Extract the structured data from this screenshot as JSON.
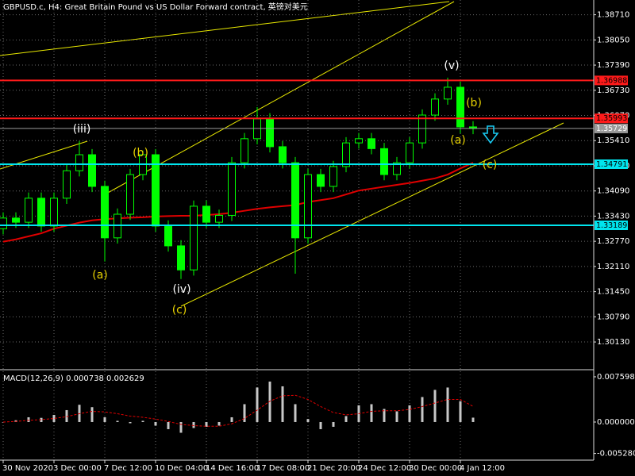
{
  "chart_data": [
    {
      "type": "candlestick",
      "title": "GBPUSD.c, H4:  Great Britain Pound vs US Dollar Forward contract, 英镑对美元",
      "categories": [
        "30 Nov 2020",
        null,
        null,
        null,
        "3 Dec 00:00",
        null,
        null,
        null,
        "7 Dec 12:00",
        null,
        null,
        null,
        "10 Dec 04:00",
        null,
        null,
        null,
        "14 Dec 16:00",
        null,
        null,
        null,
        "17 Dec 08:00",
        null,
        null,
        null,
        "21 Dec 20:00",
        null,
        null,
        null,
        "24 Dec 12:00",
        null,
        null,
        null,
        "30 Dec 00:00",
        null,
        null,
        null,
        "4 Jan 12:00",
        null
      ],
      "open": [
        1.331,
        1.3338,
        1.3327,
        1.339,
        1.3317,
        1.339,
        1.3462,
        1.3504,
        1.3421,
        1.3286,
        1.3348,
        1.3452,
        1.3504,
        1.3317,
        1.3265,
        1.3202,
        1.3369,
        1.3327,
        1.3345,
        1.3483,
        1.3546,
        1.3598,
        1.3525,
        1.3483,
        1.3286,
        1.3452,
        1.3421,
        1.3473,
        1.3535,
        1.3546,
        1.352,
        1.3452,
        1.3483,
        1.3535,
        1.3608,
        1.365,
        1.3681,
        1.3577
      ],
      "high": [
        1.3353,
        1.3353,
        1.3405,
        1.3405,
        1.3405,
        1.3477,
        1.354,
        1.3519,
        1.3436,
        1.3363,
        1.3467,
        1.3515,
        1.3519,
        1.3332,
        1.328,
        1.3384,
        1.3384,
        1.336,
        1.3498,
        1.3561,
        1.3629,
        1.3613,
        1.354,
        1.3498,
        1.3467,
        1.3467,
        1.3488,
        1.355,
        1.3561,
        1.3561,
        1.3535,
        1.3498,
        1.355,
        1.3623,
        1.3665,
        1.3706,
        1.3696,
        1.3592
      ],
      "low": [
        1.3295,
        1.3312,
        1.3312,
        1.3302,
        1.3302,
        1.3375,
        1.3447,
        1.3406,
        1.3224,
        1.3271,
        1.3333,
        1.3437,
        1.3302,
        1.325,
        1.3178,
        1.3187,
        1.3312,
        1.3312,
        1.333,
        1.3468,
        1.3531,
        1.351,
        1.3468,
        1.3192,
        1.3271,
        1.3406,
        1.3406,
        1.3458,
        1.352,
        1.3505,
        1.3437,
        1.3437,
        1.3468,
        1.352,
        1.3593,
        1.3635,
        1.356,
        1.3558
      ],
      "close": [
        1.3338,
        1.3327,
        1.339,
        1.3317,
        1.339,
        1.3462,
        1.3504,
        1.3421,
        1.3286,
        1.3348,
        1.3452,
        1.3504,
        1.3317,
        1.3265,
        1.3202,
        1.3369,
        1.3327,
        1.3345,
        1.3483,
        1.3546,
        1.3598,
        1.3525,
        1.3483,
        1.3286,
        1.3452,
        1.3421,
        1.3473,
        1.3535,
        1.3546,
        1.352,
        1.3452,
        1.3483,
        1.3535,
        1.3608,
        1.365,
        1.3681,
        1.3577,
        1.3573
      ],
      "up_color": "#00ff00",
      "down_color": "#00ff00",
      "overlay": {
        "color": "#e00000",
        "values": [
          1.3276,
          1.3282,
          1.329,
          1.3298,
          1.331,
          1.3318,
          1.3326,
          1.3332,
          1.3335,
          1.3337,
          1.3339,
          1.334,
          1.3342,
          1.3343,
          1.3344,
          1.3344,
          1.3346,
          1.3348,
          1.3352,
          1.3357,
          1.3362,
          1.3366,
          1.3369,
          1.3372,
          1.338,
          1.3385,
          1.339,
          1.34,
          1.341,
          1.3415,
          1.342,
          1.3425,
          1.343,
          1.3436,
          1.3442,
          1.3452,
          1.3468,
          1.3483
        ]
      },
      "levels": [
        {
          "value": 1.36988,
          "color": "#ff1a1a"
        },
        {
          "value": 1.35993,
          "color": "#ff1a1a"
        },
        {
          "value": 1.35729,
          "color": "#9a9a9a"
        },
        {
          "value": 1.34791,
          "color": "#00e5ee"
        },
        {
          "value": 1.33189,
          "color": "#00e5ee"
        }
      ],
      "ylim": [
        1.29424,
        1.39097
      ],
      "yticks": [
        {
          "value": 1.3871,
          "label": "1.38710"
        },
        {
          "value": 1.3805,
          "label": "1.38050"
        },
        {
          "value": 1.3739,
          "label": "1.37390"
        },
        {
          "value": 1.3673,
          "label": "1.36730"
        },
        {
          "value": 1.3607,
          "label": "1.36070"
        },
        {
          "value": 1.3541,
          "label": "1.35410"
        },
        {
          "value": 1.3475,
          "label": "1.34750"
        },
        {
          "value": 1.3409,
          "label": "1.34090"
        },
        {
          "value": 1.3343,
          "label": "1.33430"
        },
        {
          "value": 1.3277,
          "label": "1.32770"
        },
        {
          "value": 1.3211,
          "label": "1.32110"
        },
        {
          "value": 1.3145,
          "label": "1.31450"
        },
        {
          "value": 1.3079,
          "label": "1.30790"
        },
        {
          "value": 1.3013,
          "label": "1.30130"
        }
      ],
      "grid": true,
      "annotations": [
        {
          "text": "(iii)",
          "color": "#ffffff"
        },
        {
          "text": "(b)",
          "color": "#e8d200"
        },
        {
          "text": "(a)",
          "color": "#e8d200"
        },
        {
          "text": "(iv)",
          "color": "#ffffff"
        },
        {
          "text": "(c)",
          "color": "#e8d200"
        },
        {
          "text": "(v)",
          "color": "#ffffff"
        },
        {
          "text": "(b)",
          "color": "#e8d200"
        },
        {
          "text": "(a)",
          "color": "#e8d200"
        },
        {
          "text": "(c)",
          "color": "#e8d200"
        }
      ]
    },
    {
      "type": "macd",
      "title": "MACD(12,26,9) 0.000738 0.002629",
      "values": [
        0.0,
        0.0003,
        0.0008,
        0.0007,
        0.0012,
        0.002,
        0.0029,
        0.0025,
        0.0008,
        0.0002,
        -0.0002,
        0.0002,
        -0.0006,
        -0.0012,
        -0.0018,
        -0.001,
        -0.0008,
        -0.0006,
        0.0008,
        0.003,
        0.0058,
        0.0068,
        0.006,
        0.003,
        0.0005,
        -0.0012,
        -0.0008,
        0.001,
        0.0028,
        0.003,
        0.0022,
        0.0018,
        0.0028,
        0.0042,
        0.0054,
        0.0058,
        0.0035,
        0.000738
      ],
      "color": "#c8c8c8",
      "signal": {
        "color": "#e00000",
        "values": [
          0.0,
          0.0001,
          0.0003,
          0.0004,
          0.0006,
          0.0009,
          0.0014,
          0.0018,
          0.0017,
          0.0014,
          0.001,
          0.0008,
          0.0005,
          0.0001,
          -0.0004,
          -0.0006,
          -0.0007,
          -0.0007,
          -0.0003,
          0.0006,
          0.002,
          0.0035,
          0.0044,
          0.0045,
          0.0038,
          0.0026,
          0.0016,
          0.0012,
          0.0014,
          0.0018,
          0.0019,
          0.0019,
          0.0021,
          0.0026,
          0.0032,
          0.0038,
          0.0038,
          0.002629
        ]
      },
      "ylim": [
        -0.0064,
        0.00866
      ],
      "yticks": [
        0.007598,
        {
          "value": 0,
          "label": "0.000000"
        },
        {
          "value": -0.00528,
          "label": "-0.005280"
        }
      ]
    }
  ]
}
